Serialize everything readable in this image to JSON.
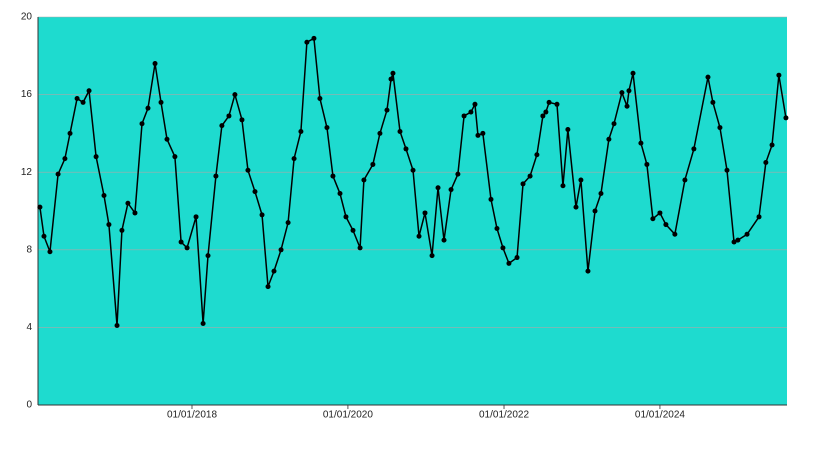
{
  "chart_data": {
    "type": "line",
    "x": [
      "2016-01-20",
      "2016-02-08",
      "2016-03-07",
      "2016-04-14",
      "2016-05-16",
      "2016-06-09",
      "2016-07-12",
      "2016-08-09",
      "2016-09-06",
      "2016-10-09",
      "2016-11-15",
      "2016-12-08",
      "2017-01-15",
      "2017-02-07",
      "2017-03-07",
      "2017-04-09",
      "2017-05-12",
      "2017-06-09",
      "2017-07-12",
      "2017-08-09",
      "2017-09-06",
      "2017-10-13",
      "2017-11-11",
      "2017-12-09",
      "2018-01-20",
      "2018-02-22",
      "2018-03-17",
      "2018-04-23",
      "2018-05-21",
      "2018-06-23",
      "2018-07-21",
      "2018-08-23",
      "2018-09-20",
      "2018-10-23",
      "2018-11-25",
      "2018-12-23",
      "2019-01-20",
      "2019-02-22",
      "2019-03-27",
      "2019-04-24",
      "2019-05-26",
      "2019-06-23",
      "2019-07-26",
      "2019-08-23",
      "2019-09-25",
      "2019-10-23",
      "2019-11-25",
      "2019-12-23",
      "2020-01-25",
      "2020-02-27",
      "2020-03-16",
      "2020-04-27",
      "2020-05-30",
      "2020-07-02",
      "2020-07-21",
      "2020-07-30",
      "2020-09-01",
      "2020-09-29",
      "2020-11-01",
      "2020-11-29",
      "2020-12-27",
      "2021-01-29",
      "2021-02-26",
      "2021-03-26",
      "2021-04-28",
      "2021-05-30",
      "2021-06-28",
      "2021-07-30",
      "2021-08-18",
      "2021-09-01",
      "2021-09-24",
      "2021-11-01",
      "2021-11-29",
      "2021-12-27",
      "2022-01-24",
      "2022-03-03",
      "2022-03-31",
      "2022-05-03",
      "2022-06-04",
      "2022-07-02",
      "2022-07-16",
      "2022-07-31",
      "2022-09-06",
      "2022-10-04",
      "2022-10-27",
      "2022-12-04",
      "2022-12-27",
      "2023-01-29",
      "2023-03-03",
      "2023-03-31",
      "2023-05-07",
      "2023-05-31",
      "2023-07-07",
      "2023-07-31",
      "2023-08-09",
      "2023-08-28",
      "2023-10-04",
      "2023-11-01",
      "2023-11-29",
      "2024-01-01",
      "2024-01-29",
      "2024-03-11",
      "2024-04-27",
      "2024-06-08",
      "2024-08-13",
      "2024-09-05",
      "2024-10-08",
      "2024-11-10",
      "2024-12-13",
      "2024-12-31",
      "2025-02-12",
      "2025-04-09",
      "2025-05-11",
      "2025-06-09",
      "2025-07-11",
      "2025-08-13"
    ],
    "values": [
      10.2,
      8.7,
      7.9,
      11.9,
      12.7,
      14.0,
      15.8,
      15.6,
      16.2,
      12.8,
      10.8,
      9.3,
      4.1,
      9.0,
      10.4,
      9.9,
      14.5,
      15.3,
      17.6,
      15.6,
      13.7,
      12.8,
      8.4,
      8.1,
      9.7,
      4.2,
      7.7,
      11.8,
      14.4,
      14.9,
      16.0,
      14.7,
      12.1,
      11.0,
      9.8,
      6.1,
      6.9,
      8.0,
      9.4,
      12.7,
      14.1,
      18.7,
      18.9,
      15.8,
      14.3,
      11.8,
      10.9,
      9.7,
      9.0,
      8.1,
      11.6,
      12.4,
      14.0,
      15.2,
      16.8,
      17.1,
      14.1,
      13.2,
      12.1,
      8.7,
      9.9,
      7.7,
      11.2,
      8.5,
      11.1,
      11.9,
      14.9,
      15.1,
      15.5,
      13.9,
      14.0,
      10.6,
      9.1,
      8.1,
      7.3,
      7.6,
      11.4,
      11.8,
      12.9,
      14.9,
      15.1,
      15.6,
      15.5,
      11.3,
      14.2,
      10.2,
      11.6,
      6.9,
      10.0,
      10.9,
      13.7,
      14.5,
      16.1,
      15.4,
      16.2,
      17.1,
      13.5,
      12.4,
      9.6,
      9.9,
      9.3,
      8.8,
      11.6,
      13.2,
      16.9,
      15.6,
      14.3,
      12.1,
      8.4,
      8.5,
      8.8,
      9.7,
      12.5,
      13.4,
      17.0,
      14.8
    ],
    "color": "#000000",
    "plot_background": "#1edbcf",
    "xlim": [
      "2016-01-11",
      "2025-08-18"
    ],
    "xticks": [
      {
        "value": "2018-01-01",
        "label": "01/01/2018"
      },
      {
        "value": "2020-01-01",
        "label": "01/01/2020"
      },
      {
        "value": "2022-01-01",
        "label": "01/01/2022"
      },
      {
        "value": "2024-01-01",
        "label": "01/01/2024"
      }
    ],
    "ylim": [
      0,
      20
    ],
    "yticks": [
      0,
      4,
      8,
      12,
      16,
      20
    ],
    "grid": true
  }
}
